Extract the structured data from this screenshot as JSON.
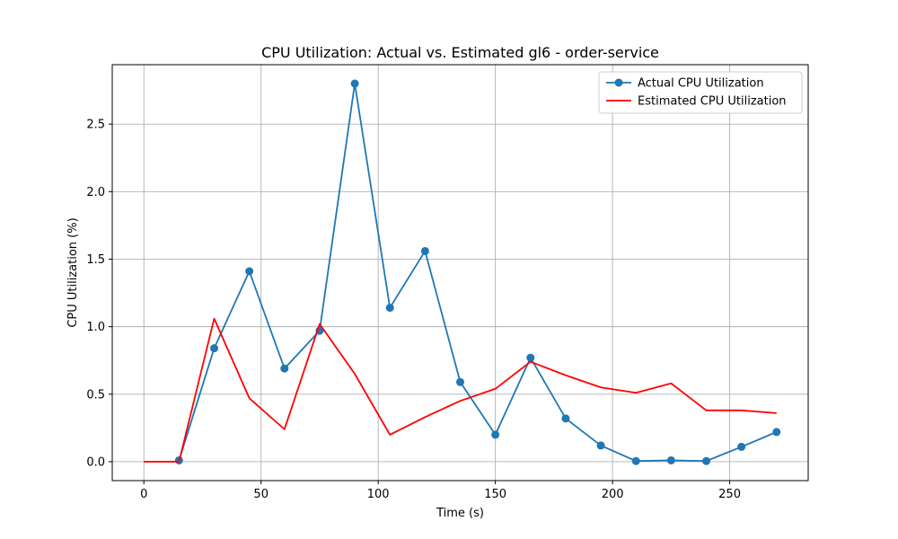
{
  "chart_data": {
    "type": "line",
    "title": "CPU Utilization: Actual vs. Estimated gl6 - order-service",
    "xlabel": "Time (s)",
    "ylabel": "CPU Utilization (%)",
    "xlim": [
      -13.5,
      283.5
    ],
    "ylim": [
      -0.14,
      2.94
    ],
    "xticks": [
      0,
      50,
      100,
      150,
      200,
      250
    ],
    "yticks": [
      0.0,
      0.5,
      1.0,
      1.5,
      2.0,
      2.5
    ],
    "xtick_labels": [
      "0",
      "50",
      "100",
      "150",
      "200",
      "250"
    ],
    "ytick_labels": [
      "0.0",
      "0.5",
      "1.0",
      "1.5",
      "2.0",
      "2.5"
    ],
    "grid": true,
    "legend_position": "top-right",
    "series": [
      {
        "name": "Actual CPU Utilization",
        "color": "#1f77b4",
        "marker": "circle",
        "x": [
          15,
          30,
          45,
          60,
          75,
          90,
          105,
          120,
          135,
          150,
          165,
          180,
          195,
          210,
          225,
          240,
          255,
          270
        ],
        "y": [
          0.01,
          0.84,
          1.41,
          0.69,
          0.97,
          2.8,
          1.14,
          1.56,
          0.59,
          0.2,
          0.77,
          0.32,
          0.12,
          0.005,
          0.01,
          0.005,
          0.11,
          0.22
        ]
      },
      {
        "name": "Estimated CPU Utilization",
        "color": "#ff0000",
        "marker": "none",
        "x": [
          0,
          15,
          30,
          45,
          60,
          75,
          90,
          105,
          120,
          135,
          150,
          165,
          180,
          195,
          210,
          225,
          240,
          255,
          270
        ],
        "y": [
          0.0,
          0.0,
          1.06,
          0.47,
          0.24,
          1.02,
          0.65,
          0.2,
          0.33,
          0.45,
          0.54,
          0.74,
          0.64,
          0.55,
          0.51,
          0.58,
          0.38,
          0.38,
          0.36
        ]
      }
    ]
  }
}
